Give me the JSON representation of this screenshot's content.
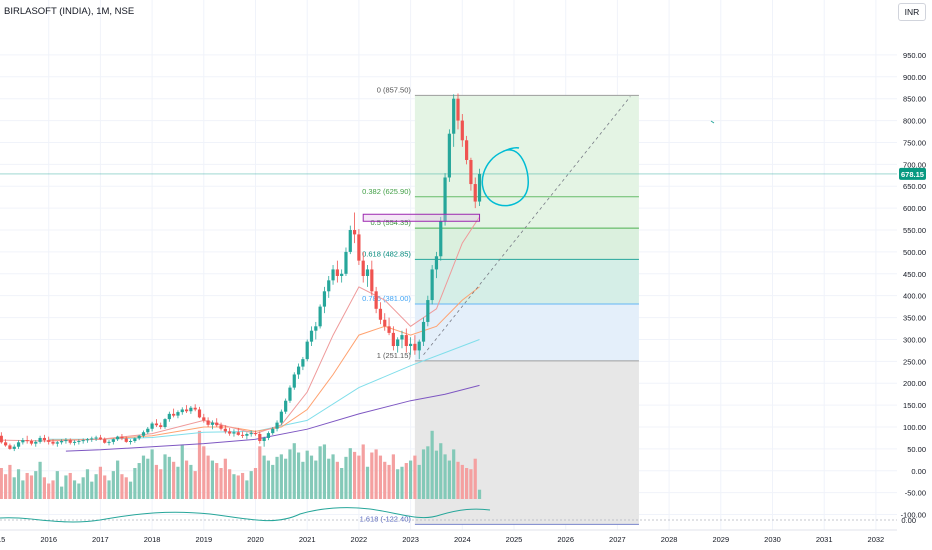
{
  "header": {
    "title": "BIRLASOFT (INDIA), 1M, NSE",
    "currency": "INR"
  },
  "price_badge": "678.15",
  "colors": {
    "up": "#26a69a",
    "down": "#ef5350",
    "up_vol": "#84c9b8",
    "down_vol": "#f4a0a0",
    "badge": "#089981"
  },
  "chart_data": {
    "type": "candlestick",
    "x_axis": {
      "ticks": [
        "2015",
        "2016",
        "2017",
        "2018",
        "2019",
        "2020",
        "2021",
        "2022",
        "2023",
        "2024",
        "2025",
        "2026",
        "2027",
        "2028",
        "2029",
        "2030",
        "2031",
        "2032"
      ]
    },
    "y_axis": {
      "ticks": [
        "950.00",
        "900.00",
        "850.00",
        "800.00",
        "750.00",
        "700.00",
        "650.00",
        "600.00",
        "550.00",
        "500.00",
        "450.00",
        "400.00",
        "350.00",
        "300.00",
        "250.00",
        "200.00",
        "150.00",
        "100.00",
        "50.00",
        "0.00",
        "-50.00",
        "-100.00"
      ],
      "ylim": [
        -112,
        985
      ]
    },
    "current_price": 678.15,
    "fib_levels": [
      {
        "label": "0 (857.50)",
        "value": 857.5
      },
      {
        "label": "0.382 (625.90)",
        "value": 625.9
      },
      {
        "label": "0.5 (554.35)",
        "value": 554.35
      },
      {
        "label": "0.618 (482.85)",
        "value": 482.85
      },
      {
        "label": "0.786 (381.00)",
        "value": 381.0
      },
      {
        "label": "1 (251.15)",
        "value": 251.15
      },
      {
        "label": "1.618 (-122.40)",
        "value": -122.4
      }
    ],
    "oscillator": {
      "label": "0.00"
    },
    "candles": [
      [
        0,
        55,
        85,
        50,
        80
      ],
      [
        1,
        80,
        88,
        62,
        65
      ],
      [
        2,
        65,
        72,
        55,
        58
      ],
      [
        3,
        58,
        62,
        48,
        50
      ],
      [
        4,
        50,
        60,
        45,
        55
      ],
      [
        5,
        55,
        70,
        50,
        65
      ],
      [
        6,
        65,
        75,
        60,
        70
      ],
      [
        7,
        70,
        80,
        62,
        68
      ],
      [
        8,
        68,
        72,
        58,
        62
      ],
      [
        9,
        62,
        70,
        55,
        66
      ],
      [
        10,
        66,
        80,
        62,
        75
      ],
      [
        11,
        75,
        82,
        65,
        70
      ],
      [
        12,
        70,
        78,
        60,
        66
      ],
      [
        13,
        66,
        72,
        58,
        62
      ],
      [
        14,
        62,
        68,
        55,
        65
      ],
      [
        15,
        65,
        72,
        60,
        68
      ],
      [
        16,
        68,
        75,
        62,
        70
      ],
      [
        17,
        70,
        74,
        60,
        64
      ],
      [
        18,
        64,
        70,
        58,
        66
      ],
      [
        19,
        66,
        72,
        60,
        68
      ],
      [
        20,
        68,
        74,
        62,
        70
      ],
      [
        21,
        70,
        75,
        64,
        72
      ],
      [
        22,
        72,
        78,
        66,
        74
      ],
      [
        23,
        74,
        80,
        68,
        76
      ],
      [
        24,
        76,
        82,
        70,
        72
      ],
      [
        25,
        72,
        76,
        62,
        64
      ],
      [
        26,
        64,
        70,
        58,
        66
      ],
      [
        27,
        66,
        74,
        60,
        72
      ],
      [
        28,
        72,
        80,
        68,
        78
      ],
      [
        29,
        78,
        84,
        70,
        74
      ],
      [
        30,
        74,
        78,
        64,
        66
      ],
      [
        31,
        66,
        72,
        60,
        68
      ],
      [
        32,
        68,
        76,
        64,
        74
      ],
      [
        33,
        74,
        82,
        70,
        80
      ],
      [
        34,
        80,
        92,
        76,
        88
      ],
      [
        35,
        88,
        100,
        84,
        96
      ],
      [
        36,
        96,
        112,
        90,
        108
      ],
      [
        37,
        108,
        118,
        100,
        104
      ],
      [
        38,
        104,
        110,
        95,
        100
      ],
      [
        39,
        100,
        120,
        96,
        118
      ],
      [
        40,
        118,
        135,
        112,
        130
      ],
      [
        41,
        130,
        142,
        122,
        126
      ],
      [
        42,
        126,
        138,
        120,
        134
      ],
      [
        43,
        134,
        145,
        128,
        140
      ],
      [
        44,
        140,
        150,
        132,
        136
      ],
      [
        45,
        136,
        148,
        130,
        144
      ],
      [
        46,
        144,
        152,
        136,
        140
      ],
      [
        47,
        140,
        146,
        120,
        122
      ],
      [
        48,
        122,
        130,
        110,
        115
      ],
      [
        49,
        115,
        122,
        100,
        105
      ],
      [
        50,
        105,
        115,
        95,
        110
      ],
      [
        51,
        110,
        120,
        100,
        104
      ],
      [
        52,
        104,
        110,
        92,
        96
      ],
      [
        53,
        96,
        104,
        85,
        90
      ],
      [
        54,
        90,
        98,
        80,
        85
      ],
      [
        55,
        85,
        95,
        78,
        88
      ],
      [
        56,
        88,
        98,
        80,
        82
      ],
      [
        57,
        82,
        90,
        75,
        80
      ],
      [
        58,
        80,
        88,
        72,
        84
      ],
      [
        59,
        84,
        92,
        78,
        86
      ],
      [
        60,
        86,
        92,
        80,
        84
      ],
      [
        61,
        84,
        90,
        62,
        68
      ],
      [
        62,
        68,
        78,
        55,
        75
      ],
      [
        63,
        75,
        90,
        70,
        86
      ],
      [
        64,
        86,
        100,
        82,
        96
      ],
      [
        65,
        96,
        115,
        90,
        110
      ],
      [
        66,
        110,
        140,
        105,
        135
      ],
      [
        67,
        135,
        165,
        130,
        160
      ],
      [
        68,
        160,
        195,
        155,
        190
      ],
      [
        69,
        190,
        225,
        185,
        220
      ],
      [
        70,
        220,
        245,
        210,
        238
      ],
      [
        71,
        238,
        260,
        230,
        255
      ],
      [
        72,
        255,
        300,
        250,
        295
      ],
      [
        73,
        295,
        330,
        285,
        320
      ],
      [
        74,
        320,
        340,
        300,
        330
      ],
      [
        75,
        330,
        380,
        325,
        375
      ],
      [
        76,
        375,
        420,
        360,
        410
      ],
      [
        77,
        410,
        445,
        395,
        435
      ],
      [
        78,
        435,
        470,
        425,
        460
      ],
      [
        79,
        460,
        480,
        430,
        445
      ],
      [
        80,
        445,
        460,
        430,
        450
      ],
      [
        81,
        450,
        510,
        445,
        500
      ],
      [
        82,
        500,
        560,
        495,
        550
      ],
      [
        83,
        550,
        590,
        520,
        540
      ],
      [
        84,
        540,
        552,
        470,
        480
      ],
      [
        85,
        480,
        500,
        430,
        445
      ],
      [
        86,
        445,
        470,
        420,
        460
      ],
      [
        87,
        460,
        480,
        400,
        410
      ],
      [
        88,
        410,
        420,
        360,
        370
      ],
      [
        89,
        370,
        385,
        335,
        345
      ],
      [
        90,
        345,
        360,
        320,
        330
      ],
      [
        91,
        330,
        350,
        310,
        315
      ],
      [
        92,
        315,
        330,
        275,
        285
      ],
      [
        93,
        285,
        305,
        270,
        300
      ],
      [
        94,
        300,
        320,
        280,
        310
      ],
      [
        95,
        310,
        325,
        270,
        285
      ],
      [
        96,
        285,
        305,
        265,
        290
      ],
      [
        97,
        290,
        310,
        265,
        275
      ],
      [
        98,
        275,
        300,
        255,
        295
      ],
      [
        99,
        295,
        350,
        285,
        340
      ],
      [
        100,
        340,
        400,
        330,
        390
      ],
      [
        101,
        390,
        470,
        380,
        460
      ],
      [
        102,
        460,
        500,
        440,
        490
      ],
      [
        103,
        490,
        580,
        480,
        570
      ],
      [
        104,
        570,
        680,
        560,
        670
      ],
      [
        105,
        670,
        780,
        660,
        770
      ],
      [
        106,
        770,
        860,
        740,
        850
      ],
      [
        107,
        850,
        862,
        780,
        800
      ],
      [
        108,
        800,
        815,
        740,
        755
      ],
      [
        109,
        755,
        765,
        700,
        710
      ],
      [
        110,
        710,
        715,
        640,
        655
      ],
      [
        111,
        655,
        670,
        600,
        615
      ],
      [
        112,
        615,
        690,
        605,
        678
      ]
    ],
    "volume": [
      [
        0,
        45,
        1
      ],
      [
        1,
        50,
        0
      ],
      [
        2,
        40,
        0
      ],
      [
        3,
        55,
        0
      ],
      [
        4,
        35,
        1
      ],
      [
        5,
        48,
        1
      ],
      [
        6,
        30,
        1
      ],
      [
        7,
        42,
        0
      ],
      [
        8,
        38,
        0
      ],
      [
        9,
        45,
        1
      ],
      [
        10,
        60,
        1
      ],
      [
        11,
        35,
        0
      ],
      [
        12,
        25,
        0
      ],
      [
        13,
        30,
        0
      ],
      [
        14,
        45,
        1
      ],
      [
        15,
        20,
        1
      ],
      [
        16,
        38,
        1
      ],
      [
        17,
        42,
        0
      ],
      [
        18,
        30,
        1
      ],
      [
        19,
        25,
        1
      ],
      [
        20,
        35,
        1
      ],
      [
        21,
        48,
        1
      ],
      [
        22,
        28,
        1
      ],
      [
        23,
        40,
        1
      ],
      [
        24,
        52,
        0
      ],
      [
        25,
        38,
        0
      ],
      [
        26,
        30,
        1
      ],
      [
        27,
        45,
        1
      ],
      [
        28,
        62,
        1
      ],
      [
        29,
        40,
        0
      ],
      [
        30,
        35,
        0
      ],
      [
        31,
        28,
        1
      ],
      [
        32,
        50,
        1
      ],
      [
        33,
        58,
        1
      ],
      [
        34,
        70,
        1
      ],
      [
        35,
        65,
        1
      ],
      [
        36,
        80,
        1
      ],
      [
        37,
        55,
        0
      ],
      [
        38,
        48,
        0
      ],
      [
        39,
        72,
        1
      ],
      [
        40,
        68,
        1
      ],
      [
        41,
        60,
        0
      ],
      [
        42,
        52,
        1
      ],
      [
        43,
        88,
        1
      ],
      [
        44,
        62,
        0
      ],
      [
        45,
        55,
        1
      ],
      [
        46,
        45,
        0
      ],
      [
        47,
        110,
        0
      ],
      [
        48,
        85,
        0
      ],
      [
        49,
        70,
        0
      ],
      [
        50,
        62,
        1
      ],
      [
        51,
        58,
        0
      ],
      [
        52,
        50,
        0
      ],
      [
        53,
        65,
        0
      ],
      [
        54,
        48,
        0
      ],
      [
        55,
        40,
        1
      ],
      [
        56,
        38,
        0
      ],
      [
        57,
        42,
        0
      ],
      [
        58,
        30,
        1
      ],
      [
        59,
        45,
        1
      ],
      [
        60,
        50,
        0
      ],
      [
        61,
        85,
        0
      ],
      [
        62,
        70,
        1
      ],
      [
        63,
        62,
        1
      ],
      [
        64,
        55,
        1
      ],
      [
        65,
        68,
        1
      ],
      [
        66,
        72,
        1
      ],
      [
        67,
        65,
        1
      ],
      [
        68,
        80,
        1
      ],
      [
        69,
        90,
        1
      ],
      [
        70,
        75,
        1
      ],
      [
        71,
        60,
        1
      ],
      [
        72,
        78,
        1
      ],
      [
        73,
        70,
        1
      ],
      [
        74,
        62,
        1
      ],
      [
        75,
        85,
        1
      ],
      [
        76,
        88,
        1
      ],
      [
        77,
        65,
        1
      ],
      [
        78,
        72,
        1
      ],
      [
        79,
        60,
        0
      ],
      [
        80,
        50,
        1
      ],
      [
        81,
        68,
        1
      ],
      [
        82,
        82,
        1
      ],
      [
        83,
        76,
        0
      ],
      [
        84,
        70,
        0
      ],
      [
        85,
        88,
        0
      ],
      [
        86,
        52,
        1
      ],
      [
        87,
        75,
        0
      ],
      [
        88,
        80,
        0
      ],
      [
        89,
        70,
        0
      ],
      [
        90,
        60,
        0
      ],
      [
        91,
        55,
        0
      ],
      [
        92,
        72,
        0
      ],
      [
        93,
        48,
        1
      ],
      [
        94,
        52,
        1
      ],
      [
        95,
        58,
        0
      ],
      [
        96,
        62,
        1
      ],
      [
        97,
        70,
        0
      ],
      [
        98,
        55,
        1
      ],
      [
        99,
        80,
        1
      ],
      [
        100,
        85,
        1
      ],
      [
        101,
        110,
        1
      ],
      [
        102,
        78,
        1
      ],
      [
        103,
        90,
        1
      ],
      [
        104,
        72,
        1
      ],
      [
        105,
        62,
        1
      ],
      [
        106,
        80,
        1
      ],
      [
        107,
        60,
        0
      ],
      [
        108,
        55,
        0
      ],
      [
        109,
        50,
        0
      ],
      [
        110,
        48,
        0
      ],
      [
        111,
        65,
        0
      ],
      [
        112,
        15,
        1
      ]
    ],
    "ma_red": [
      [
        0,
        70
      ],
      [
        12,
        68
      ],
      [
        24,
        72
      ],
      [
        36,
        85
      ],
      [
        48,
        115
      ],
      [
        54,
        100
      ],
      [
        60,
        85
      ],
      [
        66,
        105
      ],
      [
        72,
        180
      ],
      [
        78,
        310
      ],
      [
        84,
        420
      ],
      [
        90,
        390
      ],
      [
        96,
        330
      ],
      [
        102,
        370
      ],
      [
        108,
        520
      ],
      [
        112,
        580
      ]
    ],
    "ma_orange": [
      [
        12,
        70
      ],
      [
        24,
        72
      ],
      [
        36,
        80
      ],
      [
        48,
        100
      ],
      [
        54,
        100
      ],
      [
        60,
        90
      ],
      [
        66,
        100
      ],
      [
        72,
        140
      ],
      [
        78,
        220
      ],
      [
        84,
        310
      ],
      [
        90,
        330
      ],
      [
        96,
        310
      ],
      [
        102,
        330
      ],
      [
        108,
        390
      ],
      [
        112,
        420
      ]
    ],
    "ma_cyan": [
      [
        12,
        72
      ],
      [
        24,
        72
      ],
      [
        36,
        76
      ],
      [
        48,
        88
      ],
      [
        60,
        90
      ],
      [
        72,
        115
      ],
      [
        84,
        190
      ],
      [
        96,
        240
      ],
      [
        104,
        270
      ],
      [
        112,
        300
      ]
    ],
    "ma_purple": [
      [
        16,
        45
      ],
      [
        24,
        48
      ],
      [
        36,
        55
      ],
      [
        48,
        62
      ],
      [
        60,
        72
      ],
      [
        72,
        95
      ],
      [
        84,
        130
      ],
      [
        96,
        160
      ],
      [
        104,
        175
      ],
      [
        112,
        195
      ]
    ]
  }
}
